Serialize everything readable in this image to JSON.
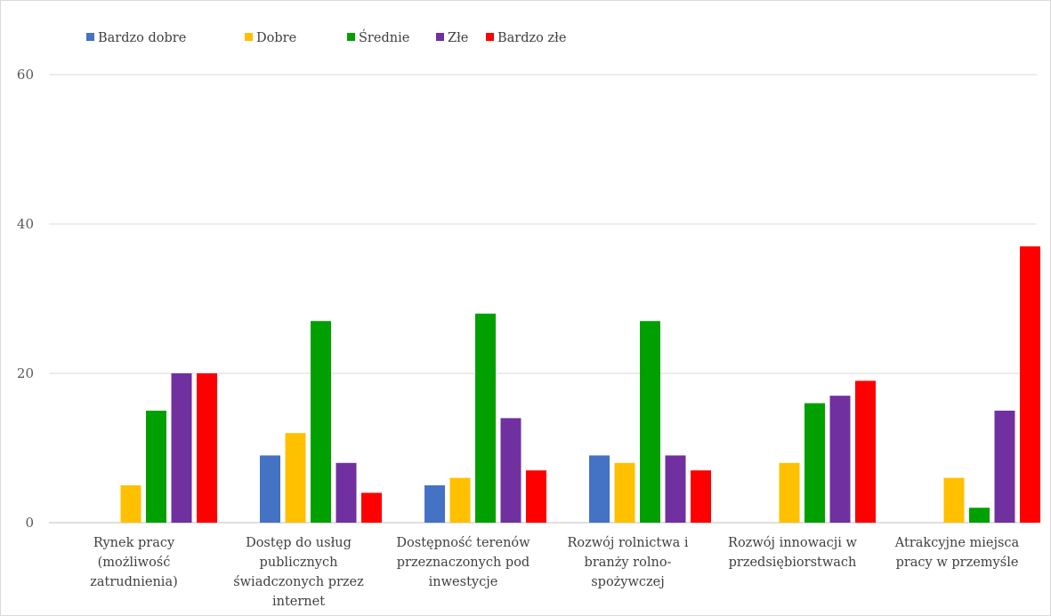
{
  "chart_data": {
    "type": "bar",
    "title": "",
    "xlabel": "",
    "ylabel": "",
    "ylim": [
      0,
      60
    ],
    "yticks": [
      0,
      20,
      40,
      60
    ],
    "grid": true,
    "legend_position": "top-left",
    "categories": [
      [
        "Rynek pracy",
        "(możliwość",
        "zatrudnienia)"
      ],
      [
        "Dostęp do usług",
        "publicznych",
        "świadczonych przez",
        "internet"
      ],
      [
        "Dostępność terenów",
        "przeznaczonych pod",
        "inwestycje"
      ],
      [
        "Rozwój rolnictwa i",
        "branży rolno-",
        "spożywczej"
      ],
      [
        "Rozwój innowacji w",
        "przedsiębiorstwach"
      ],
      [
        "Atrakcyjne miejsca",
        "pracy w przemyśle"
      ]
    ],
    "series": [
      {
        "name": "Bardzo dobre",
        "color": "#4472c4",
        "values": [
          0,
          9,
          5,
          9,
          0,
          0
        ]
      },
      {
        "name": "Dobre",
        "color": "#ffc000",
        "values": [
          5,
          12,
          6,
          8,
          8,
          6
        ]
      },
      {
        "name": "Średnie",
        "color": "#00a000",
        "values": [
          15,
          27,
          28,
          27,
          16,
          2
        ]
      },
      {
        "name": "Złe",
        "color": "#7030a0",
        "values": [
          20,
          8,
          14,
          9,
          17,
          15
        ]
      },
      {
        "name": "Bardzo złe",
        "color": "#ff0000",
        "values": [
          20,
          4,
          7,
          7,
          19,
          37
        ]
      }
    ]
  }
}
